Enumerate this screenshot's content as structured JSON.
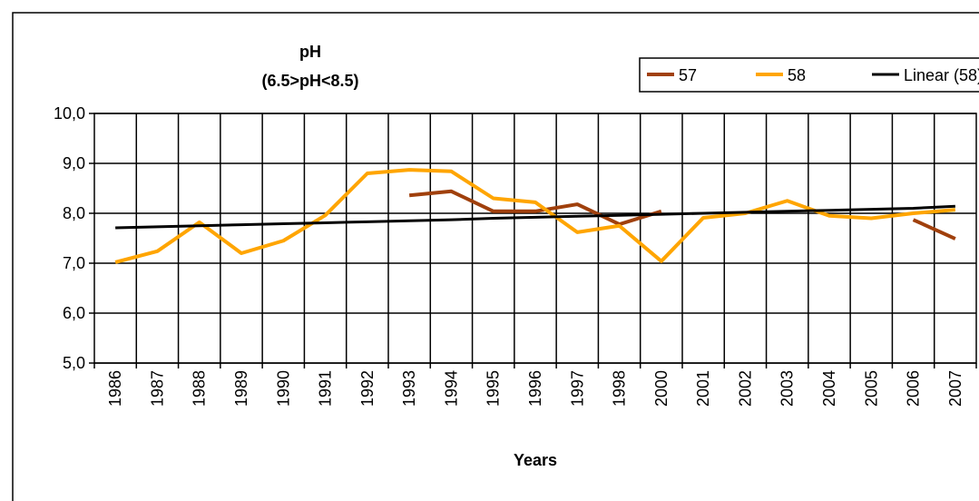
{
  "chart_data": {
    "type": "line",
    "title": "pH",
    "subtitle": "(6.5>pH<8.5)",
    "x_label": "Years",
    "categories": [
      "1986",
      "1987",
      "1988",
      "1989",
      "1990",
      "1991",
      "1992",
      "1993",
      "1994",
      "1995",
      "1996",
      "1997",
      "1998",
      "2000",
      "2001",
      "2002",
      "2003",
      "2004",
      "2005",
      "2006",
      "2007"
    ],
    "series": [
      {
        "name": "57",
        "color": "#a0400c",
        "values": [
          null,
          null,
          null,
          null,
          null,
          null,
          null,
          8.36,
          8.44,
          8.04,
          8.04,
          8.18,
          7.78,
          8.04,
          null,
          null,
          null,
          null,
          null,
          7.87,
          7.49
        ]
      },
      {
        "name": "58",
        "color": "#ffa500",
        "values": [
          7.02,
          7.24,
          7.82,
          7.2,
          7.45,
          7.96,
          8.8,
          8.87,
          8.84,
          8.3,
          8.22,
          7.62,
          7.75,
          7.04,
          7.91,
          8.0,
          8.25,
          7.95,
          7.9,
          8.0,
          8.07
        ]
      },
      {
        "name": "Linear (58)",
        "color": "#000000",
        "values": [
          7.71,
          7.73,
          7.75,
          7.77,
          7.79,
          7.81,
          7.83,
          7.85,
          7.87,
          7.9,
          7.92,
          7.94,
          7.96,
          7.98,
          8.0,
          8.02,
          8.04,
          8.06,
          8.08,
          8.1,
          8.14
        ]
      }
    ],
    "ylim": [
      5,
      10
    ],
    "yticks": [
      {
        "value": 5,
        "label": "5,0"
      },
      {
        "value": 6,
        "label": "6,0"
      },
      {
        "value": 7,
        "label": "7,0"
      },
      {
        "value": 8,
        "label": "8,0"
      },
      {
        "value": 9,
        "label": "9,0"
      },
      {
        "value": 10,
        "label": "10,0"
      }
    ],
    "grid": true,
    "legend": "top-right"
  }
}
